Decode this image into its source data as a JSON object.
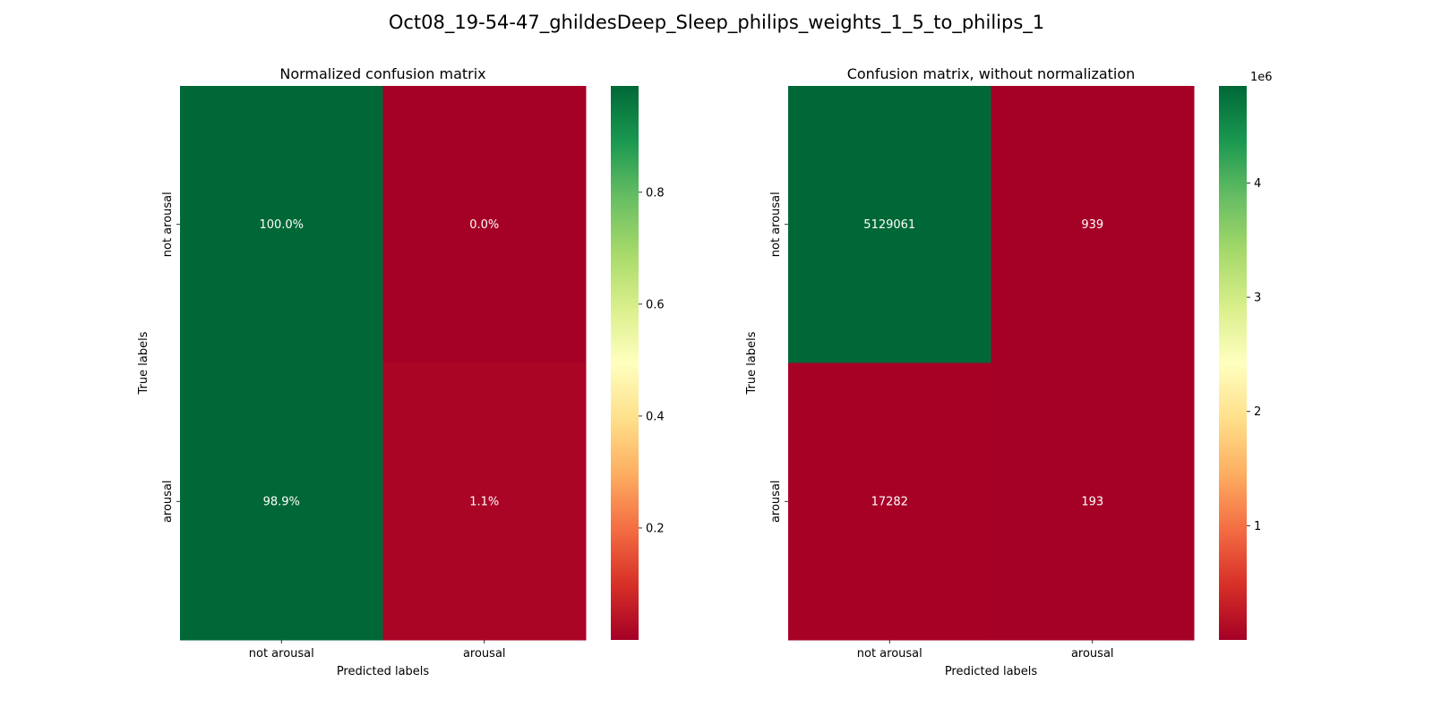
{
  "figure": {
    "suptitle": "Oct08_19-54-47_ghildesDeep_Sleep_philips_weights_1_5_to_philips_1"
  },
  "chart_data": [
    {
      "type": "heatmap",
      "title": "Normalized confusion matrix",
      "xlabel": "Predicted labels",
      "ylabel": "True labels",
      "x_categories": [
        "not arousal",
        "arousal"
      ],
      "y_categories": [
        "not arousal",
        "arousal"
      ],
      "values": [
        [
          0.9998,
          0.0002
        ],
        [
          0.989,
          0.011
        ]
      ],
      "annotations": [
        [
          "100.0%",
          "0.0%"
        ],
        [
          "98.9%",
          "1.1%"
        ]
      ],
      "colormap": "RdYlGn",
      "colorbar": {
        "min": 0.0,
        "max": 0.99,
        "ticks": [
          "0.2",
          "0.4",
          "0.6",
          "0.8"
        ],
        "tick_values": [
          0.2,
          0.4,
          0.6,
          0.8
        ],
        "offset_label": ""
      }
    },
    {
      "type": "heatmap",
      "title": "Confusion matrix, without normalization",
      "xlabel": "Predicted labels",
      "ylabel": "True labels",
      "x_categories": [
        "not arousal",
        "arousal"
      ],
      "y_categories": [
        "not arousal",
        "arousal"
      ],
      "values": [
        [
          5129061,
          939
        ],
        [
          17282,
          193
        ]
      ],
      "annotations": [
        [
          "5129061",
          "939"
        ],
        [
          "17282",
          "193"
        ]
      ],
      "colormap": "RdYlGn",
      "colorbar": {
        "min": 0,
        "max": 4850000,
        "ticks": [
          "1",
          "2",
          "3",
          "4"
        ],
        "tick_values": [
          1000000,
          2000000,
          3000000,
          4000000
        ],
        "offset_label": "1e6"
      }
    }
  ]
}
